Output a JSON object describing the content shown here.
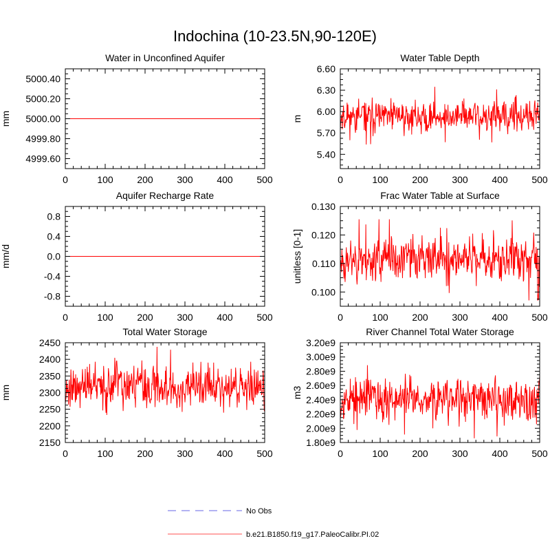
{
  "figure_title": "Indochina (10-23.5N,90-120E)",
  "colors": {
    "model": "#ff0000",
    "obs": "#9999ee",
    "axis": "#000000"
  },
  "legend": {
    "placement": "bottom-center",
    "items": [
      {
        "label": "No Obs",
        "style": "dashed",
        "color": "#9999ee"
      },
      {
        "label": "b.e21.B1850.f19_g17.PaleoCalibr.PI.02",
        "style": "solid",
        "color": "#ff8a8a"
      }
    ]
  },
  "chart_data": [
    {
      "type": "line",
      "title": "Water in Unconfined Aquifer",
      "ylabel": "mm",
      "xlim": [
        0,
        500
      ],
      "ylim": [
        4999.5,
        5000.5
      ],
      "xticks": [
        0,
        100,
        200,
        300,
        400,
        500
      ],
      "xtick_labels": [
        "0",
        "100",
        "200",
        "300",
        "400",
        "500"
      ],
      "yticks": [
        4999.6,
        4999.8,
        5000.0,
        5000.2,
        5000.4
      ],
      "ytick_labels": [
        "4999.60",
        "4999.80",
        "5000.00",
        "5000.20",
        "5000.40"
      ],
      "series": [
        {
          "kind": "constant",
          "value": 5000.0
        }
      ]
    },
    {
      "type": "line",
      "title": "Water Table Depth",
      "ylabel": "m",
      "xlim": [
        0,
        500
      ],
      "ylim": [
        5.2,
        6.6
      ],
      "xticks": [
        0,
        100,
        200,
        300,
        400,
        500
      ],
      "xtick_labels": [
        "0",
        "100",
        "200",
        "300",
        "400",
        "500"
      ],
      "yticks": [
        5.4,
        5.7,
        6.0,
        6.3,
        6.6
      ],
      "ytick_labels": [
        "5.40",
        "5.70",
        "6.00",
        "6.30",
        "6.60"
      ],
      "series": [
        {
          "kind": "noisy",
          "mean": 5.93,
          "spread": 0.13,
          "min": 5.38,
          "max": 6.48,
          "n": 500,
          "seed": 11
        }
      ]
    },
    {
      "type": "line",
      "title": "Aquifer Recharge Rate",
      "ylabel": "mm/d",
      "xlim": [
        0,
        500
      ],
      "ylim": [
        -1.0,
        1.0
      ],
      "xticks": [
        0,
        100,
        200,
        300,
        400,
        500
      ],
      "xtick_labels": [
        "0",
        "100",
        "200",
        "300",
        "400",
        "500"
      ],
      "yticks": [
        -0.8,
        -0.4,
        0.0,
        0.4,
        0.8
      ],
      "ytick_labels": [
        "-0.8",
        "-0.4",
        "0.0",
        "0.4",
        "0.8"
      ],
      "series": [
        {
          "kind": "constant",
          "value": 0.0
        }
      ]
    },
    {
      "type": "line",
      "title": "Frac Water Table at Surface",
      "ylabel": "unitless [0-1]",
      "xlim": [
        0,
        500
      ],
      "ylim": [
        0.095,
        0.13
      ],
      "xticks": [
        0,
        100,
        200,
        300,
        400,
        500
      ],
      "xtick_labels": [
        "0",
        "100",
        "200",
        "300",
        "400",
        "500"
      ],
      "yticks": [
        0.1,
        0.11,
        0.12,
        0.13
      ],
      "ytick_labels": [
        "0.100",
        "0.110",
        "0.120",
        "0.130"
      ],
      "series": [
        {
          "kind": "noisy",
          "mean": 0.1115,
          "spread": 0.0045,
          "min": 0.097,
          "max": 0.1255,
          "n": 500,
          "seed": 23
        }
      ]
    },
    {
      "type": "line",
      "title": "Total Water Storage",
      "ylabel": "mm",
      "xlim": [
        0,
        500
      ],
      "ylim": [
        2150,
        2450
      ],
      "xticks": [
        0,
        100,
        200,
        300,
        400,
        500
      ],
      "xtick_labels": [
        "0",
        "100",
        "200",
        "300",
        "400",
        "500"
      ],
      "yticks": [
        2150,
        2200,
        2250,
        2300,
        2350,
        2400,
        2450
      ],
      "ytick_labels": [
        "2150",
        "2200",
        "2250",
        "2300",
        "2350",
        "2400",
        "2450"
      ],
      "series": [
        {
          "kind": "noisy",
          "mean": 2318,
          "spread": 38,
          "min": 2172,
          "max": 2445,
          "n": 500,
          "seed": 37
        }
      ]
    },
    {
      "type": "line",
      "title": "River Channel Total Water Storage",
      "ylabel": "m3",
      "xlim": [
        0,
        500
      ],
      "ylim": [
        1800000000.0,
        3200000000.0
      ],
      "xticks": [
        0,
        100,
        200,
        300,
        400,
        500
      ],
      "xtick_labels": [
        "0",
        "100",
        "200",
        "300",
        "400",
        "500"
      ],
      "yticks": [
        1800000000.0,
        2000000000.0,
        2200000000.0,
        2400000000.0,
        2600000000.0,
        2800000000.0,
        3000000000.0,
        3200000000.0
      ],
      "ytick_labels": [
        "1.80e9",
        "2.00e9",
        "2.20e9",
        "2.40e9",
        "2.60e9",
        "2.80e9",
        "3.00e9",
        "3.20e9"
      ],
      "series": [
        {
          "kind": "noisy",
          "mean": 2420000000.0,
          "spread": 170000000.0,
          "min": 1850000000.0,
          "max": 3050000000.0,
          "n": 500,
          "seed": 53
        }
      ]
    }
  ]
}
